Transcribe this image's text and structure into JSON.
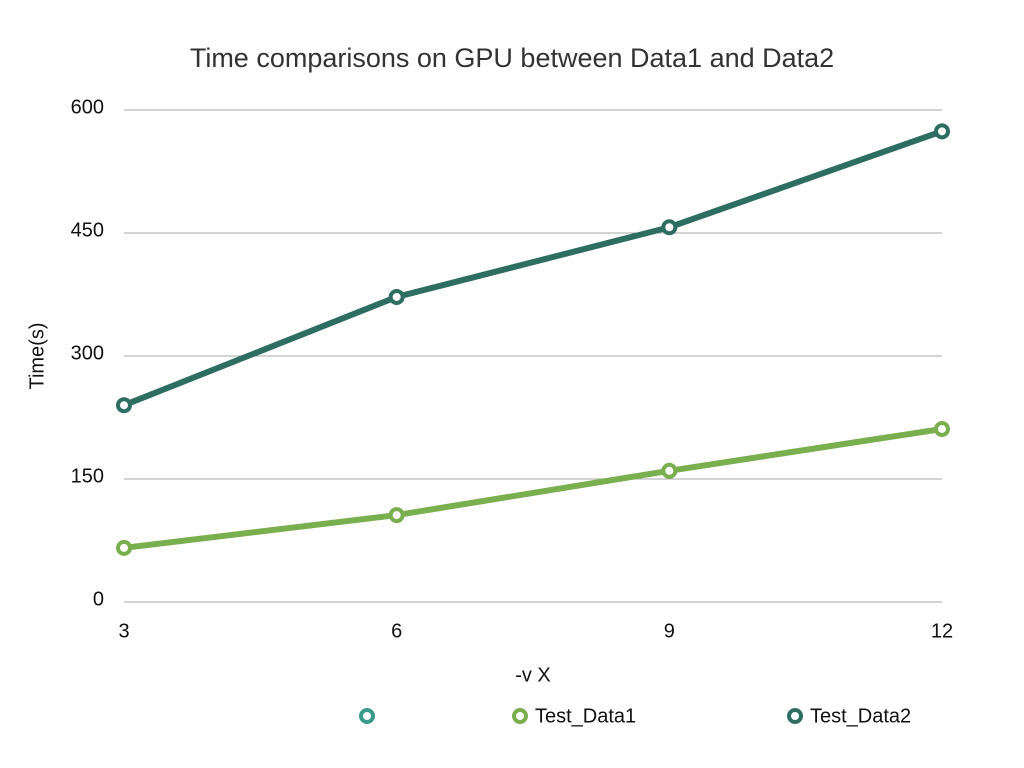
{
  "chart_data": {
    "type": "line",
    "title": "Time comparisons on GPU between Data1 and Data2",
    "x_label": "-v X",
    "y_label": "Time(s)",
    "x": [
      3,
      6,
      9,
      12
    ],
    "series": [
      {
        "name": "Test_Data1",
        "color": "#7aaf50",
        "values": [
          66,
          106,
          160,
          211
        ]
      },
      {
        "name": "Test_Data2",
        "color": "#2e6e62",
        "values": [
          240,
          372,
          457,
          574
        ]
      }
    ],
    "xlim": [
      3,
      12
    ],
    "xticks": [
      3,
      6,
      9,
      12
    ],
    "ylim": [
      0,
      600
    ],
    "yticks": [
      0,
      150,
      300,
      450,
      600
    ],
    "grid": true,
    "legend": "bottom"
  }
}
